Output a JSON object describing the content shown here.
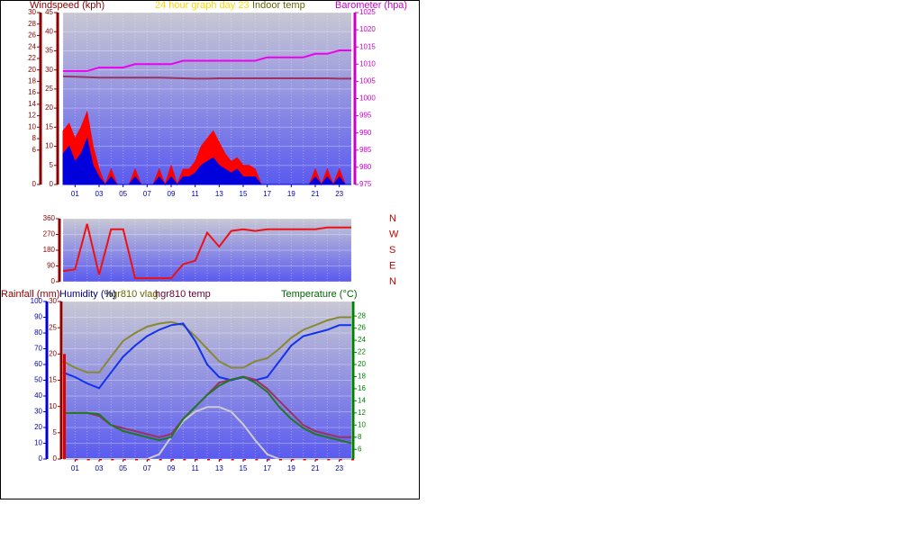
{
  "chart_data": [
    {
      "type": "line",
      "title": "24 hour graph day 23",
      "ylabel": "Windspeed (kph)",
      "y2label": "Barometer (hpa)",
      "xlim": [
        0,
        24
      ],
      "x": [
        0,
        1,
        2,
        3,
        4,
        5,
        6,
        7,
        8,
        9,
        10,
        11,
        12,
        13,
        14,
        15,
        16,
        17,
        18,
        19,
        20,
        21,
        22,
        23,
        24
      ],
      "xticks": [
        {
          "value": 1,
          "label": "01"
        },
        {
          "value": 3,
          "label": "03"
        },
        {
          "value": 5,
          "label": "05"
        },
        {
          "value": 7,
          "label": "07"
        },
        {
          "value": 9,
          "label": "09"
        },
        {
          "value": 11,
          "label": "11"
        },
        {
          "value": 13,
          "label": "13"
        },
        {
          "value": 15,
          "label": "15"
        },
        {
          "value": 17,
          "label": "17"
        },
        {
          "value": 19,
          "label": "19"
        },
        {
          "value": 21,
          "label": "21"
        },
        {
          "value": 23,
          "label": "23"
        }
      ],
      "ylim": [
        0,
        45
      ],
      "yticks": [
        0,
        5,
        10,
        15,
        20,
        25,
        30,
        35,
        40,
        45
      ],
      "y3lim": [
        0,
        30
      ],
      "y3ticks": [
        0,
        6,
        8,
        10,
        12,
        14,
        16,
        18,
        20,
        22,
        24,
        26,
        28,
        30
      ],
      "y2lim": [
        975,
        1025
      ],
      "y2ticks": [
        975,
        980,
        985,
        990,
        995,
        1000,
        1005,
        1010,
        1015,
        1020,
        1025
      ],
      "grid": true,
      "series": [
        {
          "type": "area",
          "color": "#ff0000",
          "x": [
            0,
            0.5,
            1,
            1.5,
            2,
            2.5,
            3,
            3.5,
            4,
            4.5,
            5,
            5.5,
            6,
            6.5,
            7,
            7.5,
            8,
            8.5,
            9,
            9.5,
            10,
            10.5,
            11,
            11.5,
            12,
            12.5,
            13,
            13.5,
            14,
            14.5,
            15,
            15.5,
            16,
            16.5,
            17,
            17.5,
            18,
            18.5,
            19,
            19.5,
            20,
            20.5,
            21,
            21.5,
            22,
            22.5,
            23,
            23.5,
            24
          ],
          "values": [
            14,
            16,
            12,
            15,
            19,
            10,
            4,
            0,
            4,
            0,
            0,
            0,
            4,
            0,
            0,
            0,
            4,
            0,
            5,
            0,
            4,
            4,
            6,
            10,
            12,
            14,
            11,
            8,
            6,
            7,
            5,
            5,
            4,
            0,
            0,
            0,
            0,
            0,
            0,
            0,
            0,
            0,
            4,
            0,
            4,
            0,
            4,
            0,
            0
          ]
        },
        {
          "type": "area",
          "color": "#0000dd",
          "x": [
            0,
            0.5,
            1,
            1.5,
            2,
            2.5,
            3,
            3.5,
            4,
            4.5,
            5,
            5.5,
            6,
            6.5,
            7,
            7.5,
            8,
            8.5,
            9,
            9.5,
            10,
            10.5,
            11,
            11.5,
            12,
            12.5,
            13,
            13.5,
            14,
            14.5,
            15,
            15.5,
            16,
            16.5,
            17,
            17.5,
            18,
            18.5,
            19,
            19.5,
            20,
            20.5,
            21,
            21.5,
            22,
            22.5,
            23,
            23.5,
            24
          ],
          "values": [
            8,
            10,
            6,
            8,
            12,
            5,
            2,
            0,
            2,
            0,
            0,
            0,
            2,
            0,
            0,
            0,
            2,
            0,
            2,
            0,
            2,
            2,
            3,
            5,
            6,
            7,
            5,
            4,
            3,
            4,
            2,
            2,
            2,
            0,
            0,
            0,
            0,
            0,
            0,
            0,
            0,
            0,
            2,
            0,
            2,
            0,
            2,
            0,
            0
          ]
        },
        {
          "type": "line",
          "name": "Indoor temp",
          "color": "#993366",
          "values": [
            28.3,
            28.2,
            28.1,
            28,
            28,
            28,
            28,
            28,
            28,
            27.9,
            27.8,
            27.7,
            27.7,
            27.8,
            27.8,
            27.8,
            27.8,
            27.8,
            27.8,
            27.8,
            27.8,
            27.8,
            27.8,
            27.7,
            27.7
          ]
        },
        {
          "type": "line",
          "axis": "y2",
          "color": "#ee00ee",
          "values": [
            1008,
            1008,
            1008,
            1009,
            1009,
            1009,
            1010,
            1010,
            1010,
            1010,
            1011,
            1011,
            1011,
            1011,
            1011,
            1011,
            1011,
            1012,
            1012,
            1012,
            1012,
            1013,
            1013,
            1014,
            1014
          ]
        }
      ]
    },
    {
      "type": "line",
      "xlim": [
        0,
        24
      ],
      "x": [
        0,
        1,
        2,
        3,
        4,
        5,
        6,
        7,
        8,
        9,
        10,
        11,
        12,
        13,
        14,
        15,
        16,
        17,
        18,
        19,
        20,
        21,
        22,
        23,
        24
      ],
      "ylim": [
        0,
        360
      ],
      "yticks": [
        0,
        90,
        180,
        270,
        360
      ],
      "y2lim": [
        0,
        360
      ],
      "y2ticks": [
        {
          "value": 360,
          "label": "N"
        },
        {
          "value": 270,
          "label": "W"
        },
        {
          "value": 180,
          "label": "S"
        },
        {
          "value": 90,
          "label": "E"
        },
        {
          "value": 0,
          "label": "N"
        }
      ],
      "grid": true,
      "series": [
        {
          "type": "line",
          "color": "#ee1111",
          "values": [
            60,
            70,
            330,
            40,
            300,
            300,
            20,
            20,
            20,
            20,
            100,
            120,
            280,
            200,
            290,
            300,
            290,
            300,
            300,
            300,
            300,
            300,
            310,
            310,
            310
          ]
        }
      ]
    },
    {
      "type": "line",
      "ylabel": "Humidity (%)",
      "y3label": "Rainfall (mm)",
      "y2label": "Temperature (°C)",
      "xlim": [
        0,
        24
      ],
      "x": [
        0,
        1,
        2,
        3,
        4,
        5,
        6,
        7,
        8,
        9,
        10,
        11,
        12,
        13,
        14,
        15,
        16,
        17,
        18,
        19,
        20,
        21,
        22,
        23,
        24
      ],
      "xticks": [
        {
          "value": 1,
          "label": "01"
        },
        {
          "value": 3,
          "label": "03"
        },
        {
          "value": 5,
          "label": "05"
        },
        {
          "value": 7,
          "label": "07"
        },
        {
          "value": 9,
          "label": "09"
        },
        {
          "value": 11,
          "label": "11"
        },
        {
          "value": 13,
          "label": "13"
        },
        {
          "value": 15,
          "label": "15"
        },
        {
          "value": 17,
          "label": "17"
        },
        {
          "value": 19,
          "label": "19"
        },
        {
          "value": 21,
          "label": "21"
        },
        {
          "value": 23,
          "label": "23"
        }
      ],
      "ylim": [
        0,
        100
      ],
      "yticks": [
        0,
        10,
        20,
        30,
        40,
        50,
        60,
        70,
        80,
        90,
        100
      ],
      "y3lim": [
        0,
        30
      ],
      "y3ticks": [
        0,
        5,
        10,
        15,
        20,
        25,
        30
      ],
      "y2lim": [
        4.4,
        30.4
      ],
      "y2ticks": [
        6,
        8,
        10,
        12,
        14,
        16,
        18,
        20,
        22,
        24,
        26,
        28
      ],
      "grid": true,
      "series": [
        {
          "type": "line",
          "color": "#cccccc",
          "values": [
            0,
            0,
            0,
            0,
            0,
            0,
            0,
            0,
            3,
            14,
            24,
            30,
            33,
            33,
            30,
            22,
            12,
            3,
            0,
            0,
            0,
            0,
            0,
            0,
            0
          ]
        },
        {
          "type": "line",
          "name": "hgr810 vlag",
          "color": "#888833",
          "values": [
            62,
            58,
            55,
            55,
            65,
            75,
            80,
            84,
            86,
            87,
            85,
            78,
            70,
            62,
            58,
            58,
            62,
            64,
            70,
            77,
            82,
            85,
            88,
            90,
            90
          ]
        },
        {
          "type": "line",
          "color": "#1133ee",
          "values": [
            55,
            52,
            48,
            45,
            55,
            65,
            72,
            78,
            82,
            85,
            86,
            75,
            60,
            52,
            50,
            52,
            50,
            52,
            62,
            72,
            78,
            80,
            82,
            85,
            85
          ]
        },
        {
          "type": "line",
          "name": "hgr810 temp",
          "axis": "y2",
          "color": "#993366",
          "values": [
            12,
            12,
            12,
            11.5,
            10,
            9.5,
            9,
            8.5,
            8,
            8.5,
            11,
            13,
            15,
            17,
            17.5,
            18,
            17.5,
            16,
            14,
            12,
            10,
            9,
            8.5,
            8,
            8
          ]
        },
        {
          "type": "line",
          "axis": "y2",
          "color": "#227722",
          "values": [
            12,
            12,
            12,
            11.8,
            10,
            9,
            8.5,
            8,
            7.5,
            8,
            11,
            13,
            15,
            16.5,
            17.5,
            18,
            17,
            15.5,
            13,
            11,
            9.5,
            8.5,
            8,
            7.5,
            7
          ]
        },
        {
          "type": "bar",
          "axis": "y3",
          "color": "#dd0000",
          "values": [
            20,
            0,
            0,
            0,
            0,
            0,
            0,
            0,
            0,
            0,
            0,
            0,
            0,
            0,
            0,
            0,
            0,
            0,
            0,
            0,
            0,
            0,
            0,
            0,
            0
          ]
        }
      ]
    }
  ]
}
